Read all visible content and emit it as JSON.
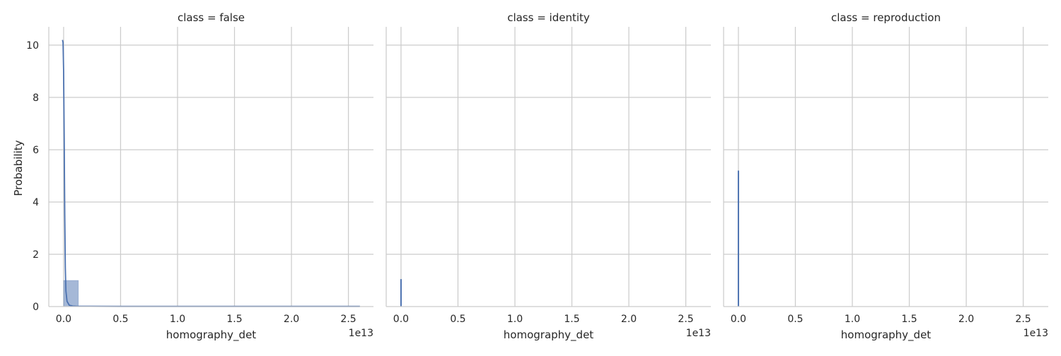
{
  "chart_data": {
    "type": "bar",
    "ylabel": "Probability",
    "x_offset_label": "1e13",
    "xlim": [
      -0.13,
      2.72
    ],
    "ylim": [
      0,
      10.7
    ],
    "x_ticks": [
      0.0,
      0.5,
      1.0,
      1.5,
      2.0,
      2.5
    ],
    "x_tick_labels": [
      "0.0",
      "0.5",
      "1.0",
      "1.5",
      "2.0",
      "2.5"
    ],
    "y_ticks": [
      0,
      2,
      4,
      6,
      8,
      10
    ],
    "y_tick_labels": [
      "0",
      "2",
      "4",
      "6",
      "8",
      "10"
    ],
    "grid": true,
    "color": "#4c72b0",
    "panels": [
      {
        "title": "class = false",
        "xlabel": "homography_det",
        "bars": [
          {
            "x0": 0.0,
            "x1": 0.13,
            "height": 1.0
          },
          {
            "x0": 0.13,
            "x1": 2.6,
            "height": 0.01
          }
        ],
        "kde": {
          "x": [
            -0.01,
            -0.005,
            0.0,
            0.005,
            0.01,
            0.015,
            0.02,
            0.03,
            0.05,
            0.08,
            0.12,
            0.2,
            0.5,
            1.0,
            1.5,
            2.0,
            2.6
          ],
          "y": [
            10.2,
            10.1,
            9.0,
            6.5,
            3.5,
            1.5,
            0.6,
            0.2,
            0.05,
            0.02,
            0.01,
            0.01,
            0.005,
            0.005,
            0.005,
            0.005,
            0.005
          ]
        }
      },
      {
        "title": "class = identity",
        "xlabel": "homography_det",
        "spike": {
          "x": 0.0,
          "height": 1.05
        }
      },
      {
        "title": "class = reproduction",
        "xlabel": "homography_det",
        "spike": {
          "x": 0.0,
          "height": 5.2
        }
      }
    ]
  }
}
